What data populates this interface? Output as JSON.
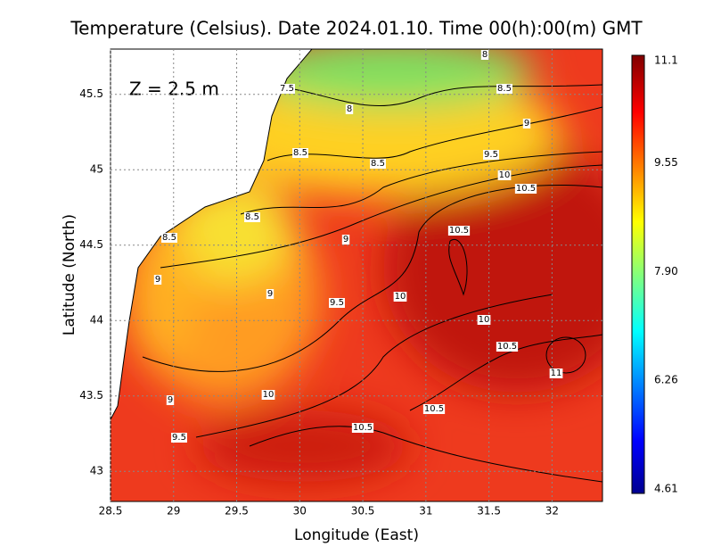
{
  "title": "Temperature (Celsius). Date 2024.01.10. Time 00(h):00(m) GMT",
  "depth_label": "Z = 2.5 m",
  "x_axis": {
    "label": "Longitude (East)",
    "lim": [
      28.5,
      32.4
    ],
    "ticks": [
      28.5,
      29,
      29.5,
      30,
      30.5,
      31,
      31.5,
      32
    ]
  },
  "y_axis": {
    "label": "Latitude (North)",
    "lim": [
      42.8,
      45.8
    ],
    "ticks": [
      43,
      43.5,
      44,
      44.5,
      45,
      45.5
    ]
  },
  "colorbar": {
    "lim": [
      4.61,
      11.1
    ],
    "ticks": [
      4.61,
      6.26,
      {
        "value": 7.9,
        "label": "7.90"
      },
      9.55,
      11.1
    ]
  },
  "contour_labels": [
    "7.5",
    "8",
    "8.5",
    "8",
    "9",
    "8.5",
    "8.5",
    "9.5",
    "10",
    "10.5",
    "8.5",
    "9",
    "10.5",
    "8.5",
    "9",
    "9",
    "10",
    "9.5",
    "10",
    "10.5",
    "11",
    "9",
    "10",
    "10.5",
    "10.5",
    "9.5"
  ]
}
